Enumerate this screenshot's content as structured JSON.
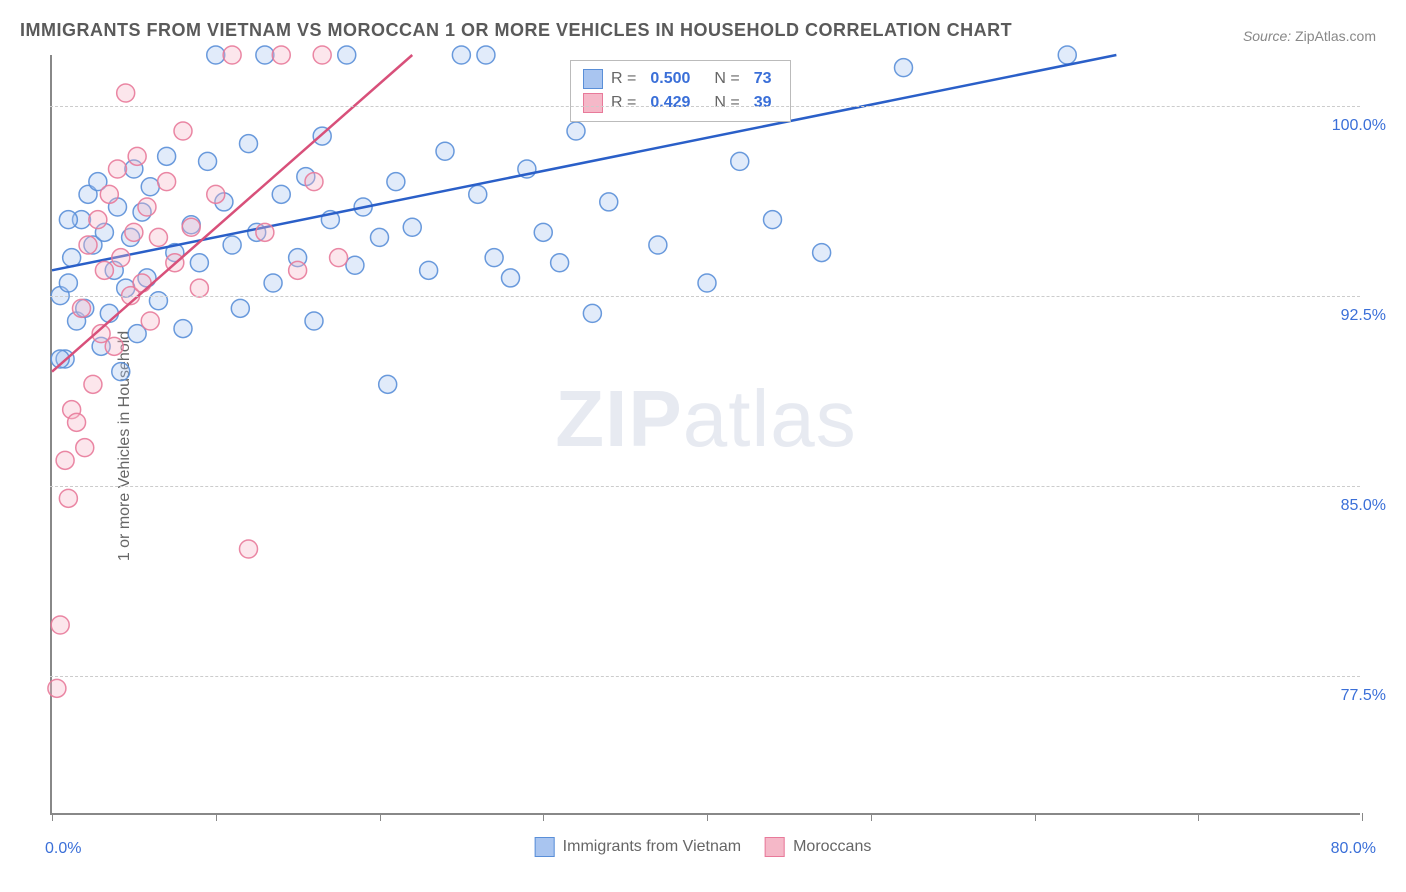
{
  "title": "IMMIGRANTS FROM VIETNAM VS MOROCCAN 1 OR MORE VEHICLES IN HOUSEHOLD CORRELATION CHART",
  "source_label": "Source:",
  "source_value": "ZipAtlas.com",
  "watermark_a": "ZIP",
  "watermark_b": "atlas",
  "ylabel": "1 or more Vehicles in Household",
  "chart": {
    "type": "scatter",
    "xlim": [
      0,
      80
    ],
    "ylim": [
      72,
      102
    ],
    "x_ticks": [
      0,
      10,
      20,
      30,
      40,
      50,
      60,
      70,
      80
    ],
    "x_tick_labels": {
      "0": "0.0%",
      "80": "80.0%"
    },
    "y_gridlines": [
      77.5,
      85.0,
      92.5,
      100.0
    ],
    "y_tick_labels": [
      "77.5%",
      "85.0%",
      "92.5%",
      "100.0%"
    ],
    "background_color": "#ffffff",
    "grid_color": "#cccccc",
    "axis_color": "#888888",
    "label_color": "#3a6fd8",
    "text_color": "#666666",
    "title_color": "#5a5a5a",
    "marker_radius": 9,
    "marker_opacity": 0.35,
    "marker_stroke_opacity": 0.9,
    "series": [
      {
        "name": "Immigrants from Vietnam",
        "fill_color": "#a9c5f0",
        "stroke_color": "#5a8fd8",
        "line_color": "#2a5fc8",
        "R": "0.500",
        "N": "73",
        "trend": {
          "x1": 0,
          "y1": 93.5,
          "x2": 65,
          "y2": 102
        },
        "points": [
          [
            0.5,
            92.5
          ],
          [
            0.8,
            90.0
          ],
          [
            1.0,
            93.0
          ],
          [
            1.2,
            94.0
          ],
          [
            1.5,
            91.5
          ],
          [
            1.8,
            95.5
          ],
          [
            2.0,
            92.0
          ],
          [
            2.2,
            96.5
          ],
          [
            2.5,
            94.5
          ],
          [
            2.8,
            97.0
          ],
          [
            3.0,
            90.5
          ],
          [
            3.2,
            95.0
          ],
          [
            3.5,
            91.8
          ],
          [
            3.8,
            93.5
          ],
          [
            4.0,
            96.0
          ],
          [
            4.2,
            89.5
          ],
          [
            4.5,
            92.8
          ],
          [
            4.8,
            94.8
          ],
          [
            5.0,
            97.5
          ],
          [
            5.2,
            91.0
          ],
          [
            5.5,
            95.8
          ],
          [
            5.8,
            93.2
          ],
          [
            6.0,
            96.8
          ],
          [
            6.5,
            92.3
          ],
          [
            7.0,
            98.0
          ],
          [
            7.5,
            94.2
          ],
          [
            8.0,
            91.2
          ],
          [
            8.5,
            95.3
          ],
          [
            9.0,
            93.8
          ],
          [
            9.5,
            97.8
          ],
          [
            10.0,
            102.0
          ],
          [
            10.5,
            96.2
          ],
          [
            11.0,
            94.5
          ],
          [
            11.5,
            92.0
          ],
          [
            12.0,
            98.5
          ],
          [
            12.5,
            95.0
          ],
          [
            13.0,
            102.0
          ],
          [
            13.5,
            93.0
          ],
          [
            14.0,
            96.5
          ],
          [
            15.0,
            94.0
          ],
          [
            15.5,
            97.2
          ],
          [
            16.0,
            91.5
          ],
          [
            16.5,
            98.8
          ],
          [
            17.0,
            95.5
          ],
          [
            18.0,
            102.0
          ],
          [
            18.5,
            93.7
          ],
          [
            19.0,
            96.0
          ],
          [
            20.0,
            94.8
          ],
          [
            20.5,
            89.0
          ],
          [
            21.0,
            97.0
          ],
          [
            22.0,
            95.2
          ],
          [
            23.0,
            93.5
          ],
          [
            24.0,
            98.2
          ],
          [
            25.0,
            102.0
          ],
          [
            26.0,
            96.5
          ],
          [
            26.5,
            102.0
          ],
          [
            27.0,
            94.0
          ],
          [
            28.0,
            93.2
          ],
          [
            29.0,
            97.5
          ],
          [
            30.0,
            95.0
          ],
          [
            31.0,
            93.8
          ],
          [
            32.0,
            99.0
          ],
          [
            33.0,
            91.8
          ],
          [
            34.0,
            96.2
          ],
          [
            37.0,
            94.5
          ],
          [
            40.0,
            93.0
          ],
          [
            42.0,
            97.8
          ],
          [
            44.0,
            95.5
          ],
          [
            47.0,
            94.2
          ],
          [
            52.0,
            101.5
          ],
          [
            62.0,
            102.0
          ],
          [
            0.5,
            90.0
          ],
          [
            1.0,
            95.5
          ]
        ]
      },
      {
        "name": "Moroccans",
        "fill_color": "#f5b8c8",
        "stroke_color": "#e87a9a",
        "line_color": "#d8507a",
        "R": "0.429",
        "N": "39",
        "trend": {
          "x1": 0,
          "y1": 89.5,
          "x2": 22,
          "y2": 102
        },
        "points": [
          [
            0.3,
            77.0
          ],
          [
            0.5,
            79.5
          ],
          [
            0.8,
            86.0
          ],
          [
            1.0,
            84.5
          ],
          [
            1.2,
            88.0
          ],
          [
            1.5,
            87.5
          ],
          [
            1.8,
            92.0
          ],
          [
            2.0,
            86.5
          ],
          [
            2.2,
            94.5
          ],
          [
            2.5,
            89.0
          ],
          [
            2.8,
            95.5
          ],
          [
            3.0,
            91.0
          ],
          [
            3.2,
            93.5
          ],
          [
            3.5,
            96.5
          ],
          [
            3.8,
            90.5
          ],
          [
            4.0,
            97.5
          ],
          [
            4.2,
            94.0
          ],
          [
            4.5,
            100.5
          ],
          [
            4.8,
            92.5
          ],
          [
            5.0,
            95.0
          ],
          [
            5.2,
            98.0
          ],
          [
            5.5,
            93.0
          ],
          [
            5.8,
            96.0
          ],
          [
            6.0,
            91.5
          ],
          [
            6.5,
            94.8
          ],
          [
            7.0,
            97.0
          ],
          [
            7.5,
            93.8
          ],
          [
            8.0,
            99.0
          ],
          [
            8.5,
            95.2
          ],
          [
            9.0,
            92.8
          ],
          [
            10.0,
            96.5
          ],
          [
            11.0,
            102.0
          ],
          [
            12.0,
            82.5
          ],
          [
            13.0,
            95.0
          ],
          [
            14.0,
            102.0
          ],
          [
            15.0,
            93.5
          ],
          [
            16.0,
            97.0
          ],
          [
            17.5,
            94.0
          ],
          [
            16.5,
            102.0
          ]
        ]
      }
    ]
  },
  "legend_top": {
    "R_label": "R =",
    "N_label": "N ="
  },
  "legend_bottom_labels": [
    "Immigrants from Vietnam",
    "Moroccans"
  ]
}
